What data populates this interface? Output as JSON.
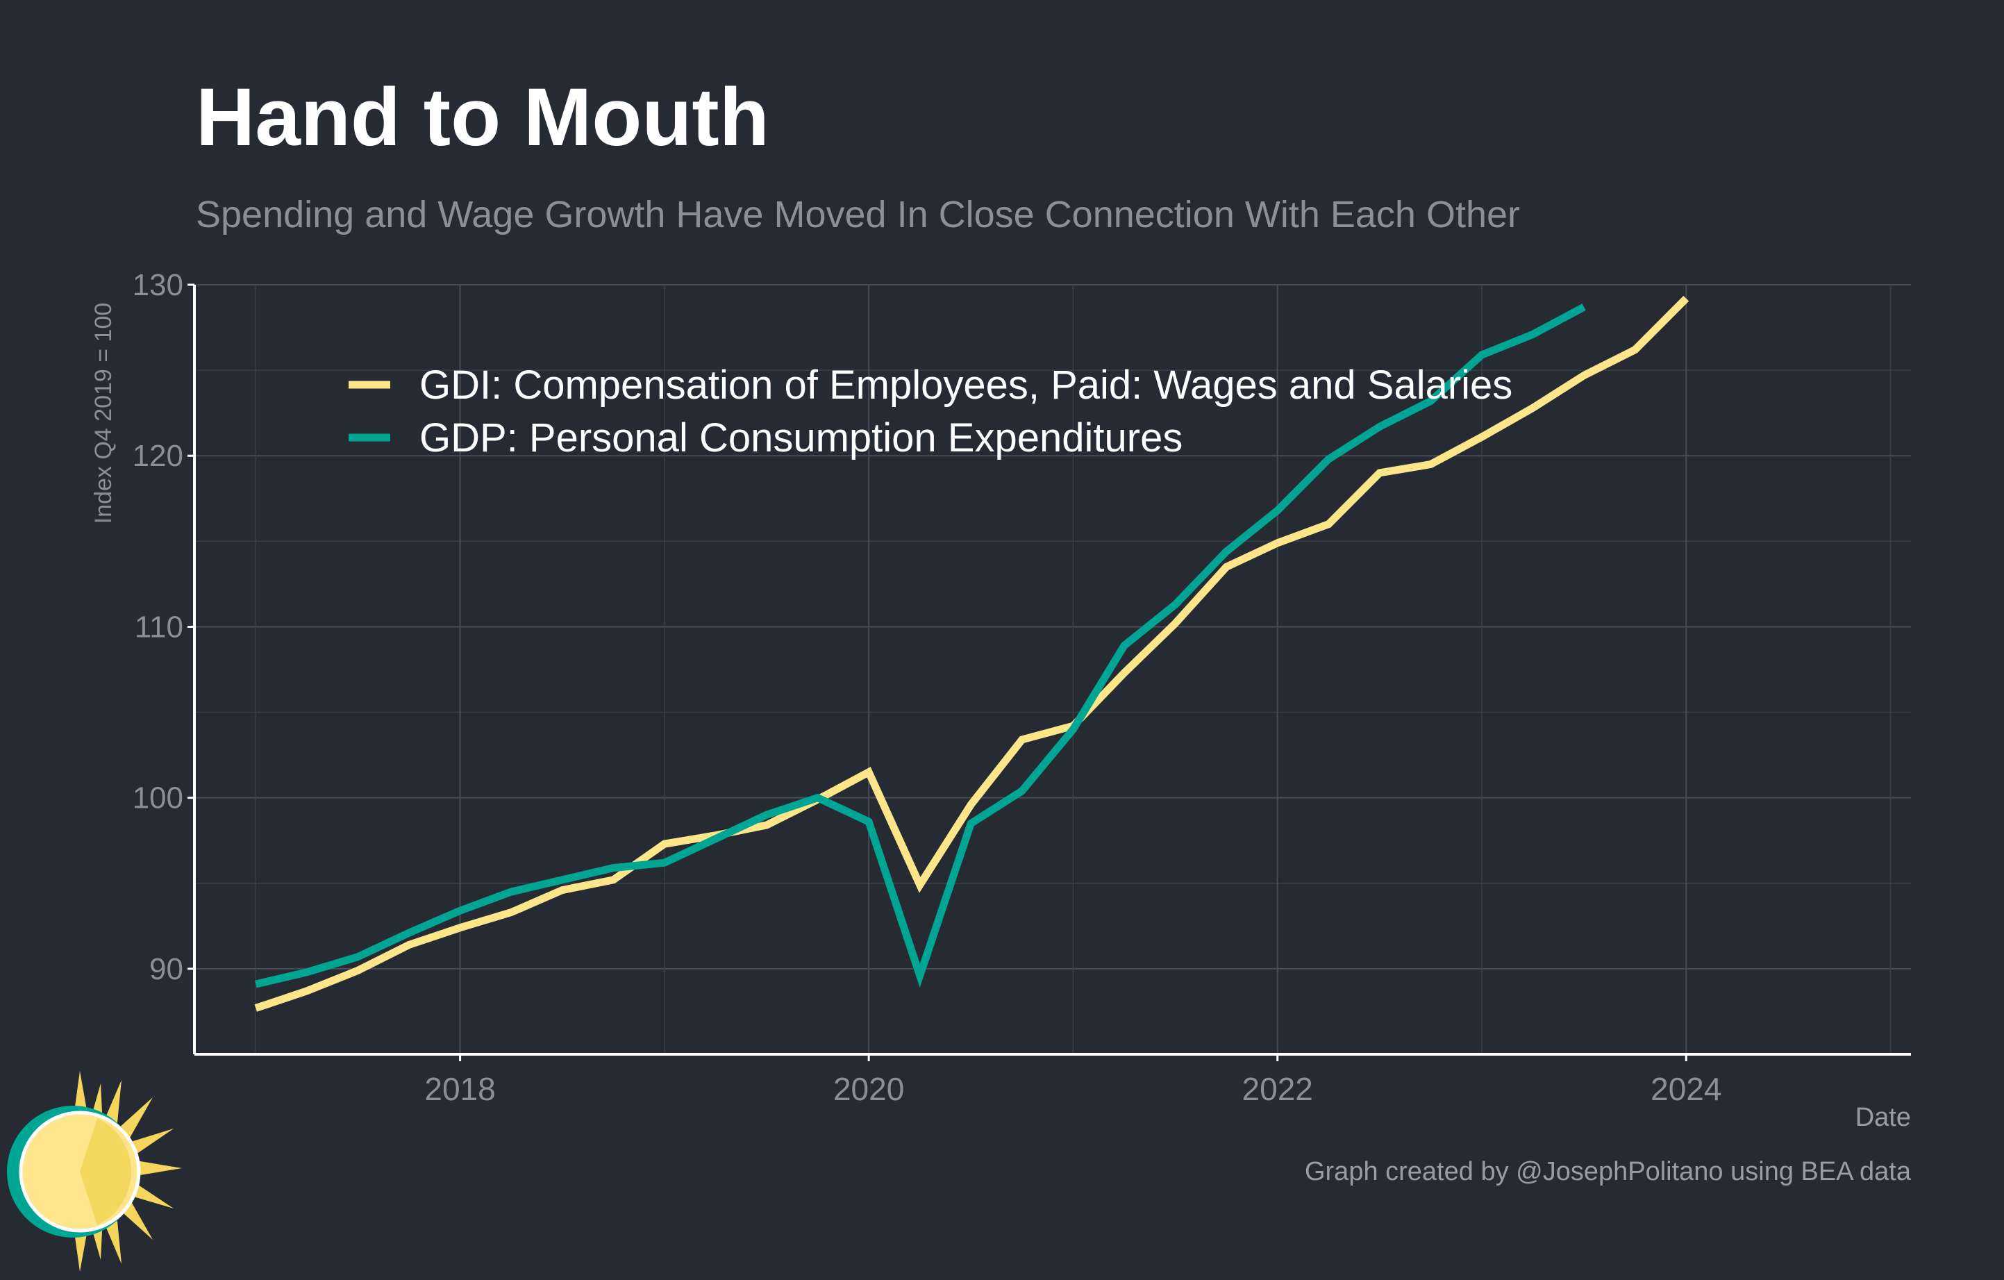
{
  "chart_data": {
    "type": "line",
    "title": "Hand to Mouth",
    "subtitle": "Spending and Wage Growth Have Moved In Close Connection With Each Other",
    "xlabel": "Date",
    "ylabel": "Index Q4 2019 = 100",
    "xlim": [
      2016.7,
      2025.1
    ],
    "ylim": [
      85,
      130
    ],
    "xticks": [
      "2018",
      "2020",
      "2022",
      "2024"
    ],
    "yticks": [
      "90",
      "100",
      "110",
      "120",
      "130"
    ],
    "grid": true,
    "legend_position": "top-left",
    "x": [
      "2017-01",
      "2017-04",
      "2017-07",
      "2017-10",
      "2018-01",
      "2018-04",
      "2018-07",
      "2018-10",
      "2019-01",
      "2019-04",
      "2019-07",
      "2019-10",
      "2020-01",
      "2020-04",
      "2020-07",
      "2020-10",
      "2021-01",
      "2021-04",
      "2021-07",
      "2021-10",
      "2022-01",
      "2022-04",
      "2022-07",
      "2022-10",
      "2023-01",
      "2023-04",
      "2023-07",
      "2023-10",
      "2024-01"
    ],
    "series": [
      {
        "name": "GDI: Compensation of Employees, Paid: Wages and Salaries",
        "color": "#fde68a",
        "values": [
          87.7,
          88.7,
          89.9,
          91.4,
          92.4,
          93.3,
          94.6,
          95.2,
          97.3,
          97.8,
          98.4,
          99.9,
          101.5,
          94.9,
          99.6,
          103.4,
          104.2,
          107.3,
          110.2,
          113.5,
          114.9,
          116.0,
          119.0,
          119.5,
          121.1,
          122.8,
          124.7,
          126.2,
          129.2
        ]
      },
      {
        "name": "GDP: Personal Consumption Expenditures",
        "color": "#00a693",
        "values": [
          89.1,
          89.8,
          90.7,
          92.1,
          93.4,
          94.5,
          95.2,
          95.9,
          96.2,
          97.6,
          99.0,
          100.0,
          98.6,
          89.6,
          98.5,
          100.4,
          104.0,
          108.9,
          111.3,
          114.4,
          116.8,
          119.8,
          121.7,
          123.2,
          125.9,
          127.1,
          128.7,
          null,
          null
        ]
      }
    ]
  },
  "credit": "Graph created by @JosephPolitano using BEA data"
}
